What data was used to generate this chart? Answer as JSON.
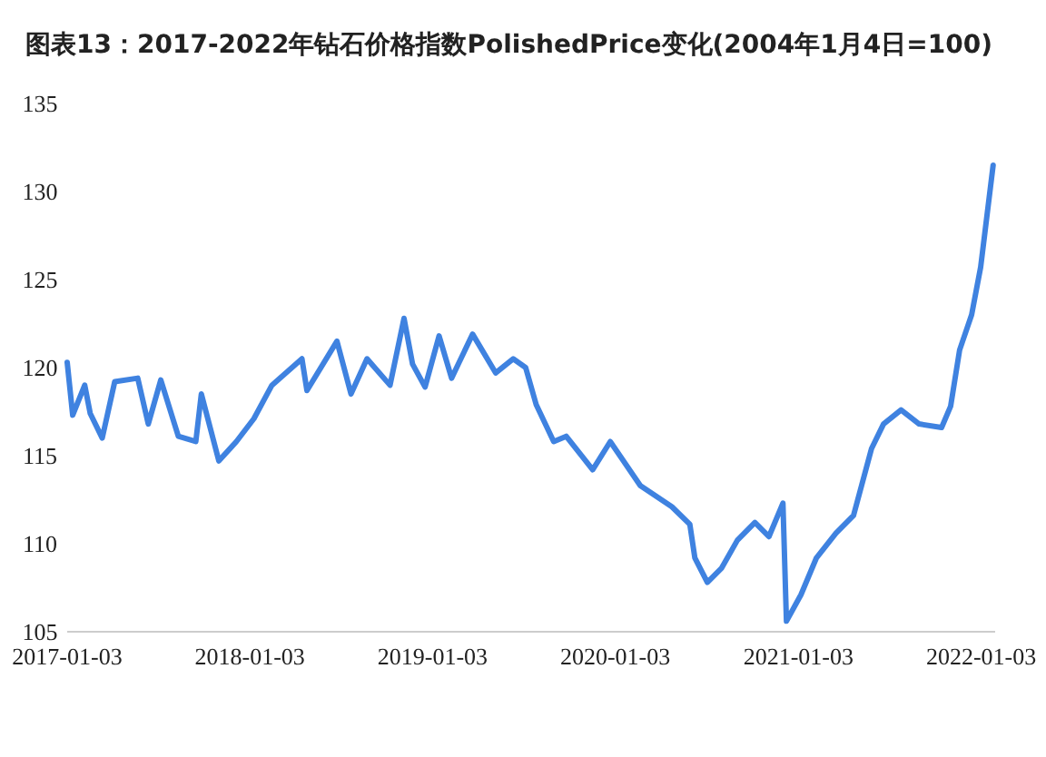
{
  "chart_data": {
    "type": "line",
    "title": "图表13：2017-2022年钻石价格指数PolishedPrice变化(2004年1月4日=100)",
    "x": [
      "2017-01-03",
      "2017-01-14",
      "2017-02-07",
      "2017-02-18",
      "2017-03-14",
      "2017-04-08",
      "2017-05-24",
      "2017-06-14",
      "2017-07-09",
      "2017-08-13",
      "2017-09-17",
      "2017-09-28",
      "2017-11-02",
      "2017-12-07",
      "2018-01-11",
      "2018-02-16",
      "2018-04-17",
      "2018-04-27",
      "2018-06-26",
      "2018-07-24",
      "2018-08-25",
      "2018-10-10",
      "2018-11-07",
      "2018-11-24",
      "2018-12-19",
      "2019-01-16",
      "2019-02-10",
      "2019-03-24",
      "2019-05-09",
      "2019-06-13",
      "2019-07-08",
      "2019-07-29",
      "2019-09-02",
      "2019-09-27",
      "2019-11-19",
      "2019-12-24",
      "2020-02-22",
      "2020-04-25",
      "2020-05-31",
      "2020-06-10",
      "2020-07-05",
      "2020-08-02",
      "2020-09-03",
      "2020-10-08",
      "2020-11-05",
      "2020-12-03",
      "2020-12-10",
      "2021-01-08",
      "2021-02-08",
      "2021-03-19",
      "2021-04-23",
      "2021-05-29",
      "2021-06-22",
      "2021-07-27",
      "2021-09-01",
      "2021-10-16",
      "2021-11-03",
      "2021-11-21",
      "2021-12-15",
      "2022-01-02",
      "2022-01-27"
    ],
    "series": [
      {
        "color": "#3f82e0",
        "values": [
          120.3,
          117.3,
          119,
          117.4,
          116,
          119.2,
          119.4,
          116.8,
          119.3,
          116.1,
          115.8,
          118.5,
          114.7,
          115.8,
          117.1,
          119,
          120.5,
          118.7,
          121.5,
          118.5,
          120.5,
          119,
          122.8,
          120.2,
          118.9,
          121.8,
          119.4,
          121.9,
          119.7,
          120.5,
          120,
          117.9,
          115.8,
          116.1,
          114.2,
          115.8,
          113.3,
          112.1,
          111.1,
          109.2,
          107.8,
          108.6,
          110.2,
          111.2,
          110.4,
          112.3,
          105.6,
          107.1,
          109.2,
          110.6,
          111.6,
          115.4,
          116.8,
          117.6,
          116.8,
          116.6,
          117.8,
          121,
          123,
          125.7,
          131.5
        ]
      }
    ],
    "xlim": [
      "2017-01-03",
      "2022-01-31"
    ],
    "xticks": [
      "2017-01-03",
      "2018-01-03",
      "2019-01-03",
      "2020-01-03",
      "2021-01-03",
      "2022-01-03"
    ],
    "ylim": [
      105,
      135
    ],
    "yticks": [
      105,
      110,
      115,
      120,
      125,
      130,
      135
    ],
    "grid": false
  }
}
